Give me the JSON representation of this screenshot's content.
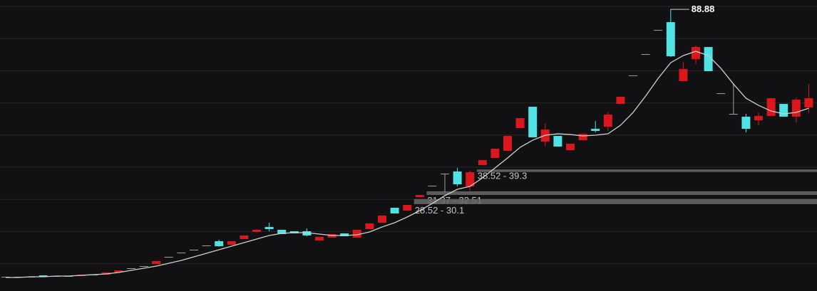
{
  "chart_data": {
    "type": "candlestick",
    "ylim": [
      1.5,
      92
    ],
    "yticks": [
      10,
      20,
      30,
      40,
      50,
      60,
      70,
      80,
      90
    ],
    "grid": true,
    "up_color": "#d9171d",
    "down_color": "#4fe3e3",
    "flat_color": "#a0a0a0",
    "open": [
      5.93,
      5.93,
      5.93,
      6.37,
      6.15,
      6.15,
      6.15,
      6.59,
      6.59,
      7.26,
      8.58,
      9.25,
      9.91,
      12.12,
      13.45,
      14.34,
      15.66,
      16.99,
      15.88,
      17.65,
      19.87,
      21.41,
      20.53,
      20.09,
      20.09,
      17.21,
      18.1,
      19.42,
      18.1,
      20.75,
      22.74,
      27.39,
      26.5,
      30.71,
      34.24,
      38.01,
      38.67,
      34.02,
      40.66,
      42.87,
      45.08,
      52.16,
      58.8,
      47.96,
      49.73,
      45.3,
      48.4,
      51.94,
      52.6,
      59.68,
      68.53,
      75.17,
      82.69,
      85.12,
      66.76,
      73.62,
      77.38,
      63.0,
      56.59,
      55.7,
      54.59,
      55.92,
      59.68,
      55.7,
      58.58
    ],
    "high": [
      5.93,
      5.93,
      5.93,
      6.37,
      6.15,
      6.15,
      6.59,
      6.59,
      7.26,
      7.92,
      8.58,
      9.25,
      10.8,
      12.12,
      13.45,
      14.34,
      15.66,
      17.43,
      16.99,
      18.76,
      20.75,
      22.74,
      20.53,
      20.09,
      20.97,
      18.32,
      19.2,
      19.42,
      20.53,
      22.52,
      24.95,
      27.39,
      28.27,
      31.37,
      34.24,
      38.01,
      39.77,
      38.89,
      42.21,
      45.75,
      49.73,
      55.26,
      58.8,
      53.71,
      49.73,
      47.3,
      50.39,
      54.37,
      57.25,
      61.89,
      68.53,
      75.17,
      82.69,
      88.88,
      72.73,
      78.04,
      77.38,
      63.0,
      66.1,
      56.59,
      57.03,
      61.45,
      59.68,
      61.67,
      65.88
    ],
    "low": [
      5.93,
      5.93,
      5.93,
      5.93,
      6.15,
      6.15,
      6.15,
      6.59,
      6.59,
      7.26,
      8.58,
      9.25,
      9.91,
      12.12,
      13.45,
      14.34,
      15.66,
      15.22,
      15.88,
      17.65,
      19.64,
      20.09,
      19.2,
      19.42,
      18.54,
      17.21,
      18.1,
      18.54,
      18.1,
      20.75,
      22.74,
      25.62,
      26.5,
      30.71,
      34.24,
      32.25,
      34.02,
      32.7,
      40.66,
      42.87,
      45.08,
      52.16,
      49.29,
      46.41,
      46.41,
      45.3,
      48.4,
      50.83,
      51.28,
      59.68,
      68.53,
      75.17,
      82.69,
      74.28,
      66.76,
      72.07,
      69.86,
      63.0,
      56.59,
      50.83,
      53.05,
      55.92,
      55.7,
      53.93,
      57.03
    ],
    "close": [
      5.93,
      5.93,
      5.93,
      5.93,
      6.15,
      6.15,
      6.59,
      6.59,
      7.26,
      7.92,
      8.58,
      9.25,
      10.8,
      12.12,
      13.45,
      14.34,
      15.66,
      15.44,
      16.99,
      18.76,
      20.53,
      20.75,
      19.2,
      19.42,
      18.76,
      18.32,
      19.2,
      18.54,
      20.53,
      22.52,
      24.95,
      25.62,
      28.27,
      31.37,
      34.24,
      38.01,
      34.69,
      38.45,
      42.21,
      45.75,
      49.73,
      55.26,
      49.29,
      51.72,
      46.41,
      47.3,
      50.39,
      51.28,
      56.36,
      61.89,
      68.53,
      75.17,
      82.69,
      74.5,
      70.52,
      77.38,
      69.86,
      63.0,
      56.59,
      51.94,
      55.92,
      61.45,
      55.7,
      61.01,
      61.45
    ],
    "ma": {
      "color": "#cfcfcf",
      "values": [
        5.71,
        5.71,
        5.93,
        5.93,
        6.15,
        6.15,
        6.37,
        6.59,
        6.81,
        7.26,
        7.92,
        8.58,
        9.25,
        10.13,
        11.02,
        12.12,
        13.23,
        14.34,
        15.44,
        16.55,
        17.65,
        18.76,
        19.42,
        19.64,
        19.64,
        19.2,
        18.76,
        18.76,
        18.98,
        19.87,
        21.41,
        22.74,
        24.51,
        26.5,
        28.72,
        31.15,
        33.14,
        34.02,
        36.68,
        39.77,
        42.87,
        46.19,
        48.4,
        49.95,
        50.39,
        50.17,
        49.73,
        49.95,
        50.39,
        53.05,
        57.03,
        62.12,
        67.64,
        72.51,
        74.72,
        76.05,
        74.72,
        70.74,
        65.88,
        61.45,
        59.24,
        57.47,
        56.59,
        57.03,
        58.35
      ]
    },
    "max_label": "88.88",
    "zones": [
      {
        "label": "38.52 - 39.3",
        "low": 38.52,
        "high": 39.3
      },
      {
        "label": "31.37 - 32.51",
        "low": 31.37,
        "high": 32.51
      },
      {
        "label": "28.52 - 30.1",
        "low": 28.52,
        "high": 30.1
      }
    ]
  }
}
